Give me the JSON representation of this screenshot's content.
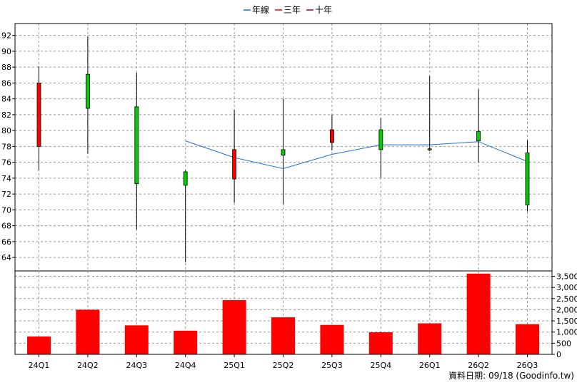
{
  "chart_data": [
    {
      "type": "candlestick",
      "categories": [
        "24Q1",
        "24Q2",
        "24Q3",
        "24Q4",
        "25Q1",
        "25Q2",
        "25Q3",
        "25Q4",
        "26Q1",
        "26Q2",
        "26Q3"
      ],
      "ohlc": [
        {
          "open": 78.0,
          "close": 86.0,
          "high": 88.1,
          "low": 75.0
        },
        {
          "open": 87.1,
          "close": 82.8,
          "high": 91.9,
          "low": 77.1
        },
        {
          "open": 83.0,
          "close": 73.3,
          "high": 87.3,
          "low": 67.5
        },
        {
          "open": 74.8,
          "close": 73.1,
          "high": 75.0,
          "low": 63.4
        },
        {
          "open": 73.9,
          "close": 77.6,
          "high": 82.6,
          "low": 70.9
        },
        {
          "open": 77.6,
          "close": 76.9,
          "high": 84.0,
          "low": 70.7
        },
        {
          "open": 78.5,
          "close": 80.1,
          "high": 82.0,
          "low": 77.5
        },
        {
          "open": 80.1,
          "close": 77.6,
          "high": 81.6,
          "low": 74.0
        },
        {
          "open": 77.7,
          "close": 77.6,
          "high": 86.9,
          "low": 77.4
        },
        {
          "open": 79.9,
          "close": 78.7,
          "high": 85.2,
          "low": 76.0
        },
        {
          "open": 77.2,
          "close": 70.6,
          "high": 78.8,
          "low": 69.8
        }
      ],
      "up_color": "#ff0000",
      "down_color": "#00cc00",
      "lines": [
        {
          "name": "年線",
          "color": "#1f6fd1",
          "values": [
            null,
            null,
            null,
            78.7,
            76.6,
            75.2,
            77.0,
            78.2,
            78.2,
            78.6,
            76.1
          ]
        },
        {
          "name": "三年",
          "color": "#ff0000",
          "values": []
        },
        {
          "name": "十年",
          "color": "#a0004a",
          "values": []
        }
      ],
      "y_ticks": [
        64,
        66,
        68,
        70,
        72,
        74,
        76,
        78,
        80,
        82,
        84,
        86,
        88,
        90,
        92
      ],
      "ylim": [
        62.3,
        93.5
      ],
      "grid": true,
      "legend_position": "top-center"
    },
    {
      "type": "bar",
      "categories": [
        "24Q1",
        "24Q2",
        "24Q3",
        "24Q4",
        "25Q1",
        "25Q2",
        "25Q3",
        "25Q4",
        "26Q1",
        "26Q2",
        "26Q3"
      ],
      "values": [
        800,
        2000,
        1300,
        1060,
        2430,
        1660,
        1320,
        990,
        1390,
        3620,
        1350
      ],
      "bar_color": "#ff0000",
      "y_ticks": [
        "0",
        "500",
        "1,000",
        "1,500",
        "2,000",
        "2,500",
        "3,000",
        "3,500"
      ],
      "y_tick_values": [
        0,
        500,
        1000,
        1500,
        2000,
        2500,
        3000,
        3500
      ],
      "ylim": [
        0,
        3740
      ],
      "grid": true
    }
  ],
  "footer": "資料日期: 09/18  (Goodinfo.tw)"
}
